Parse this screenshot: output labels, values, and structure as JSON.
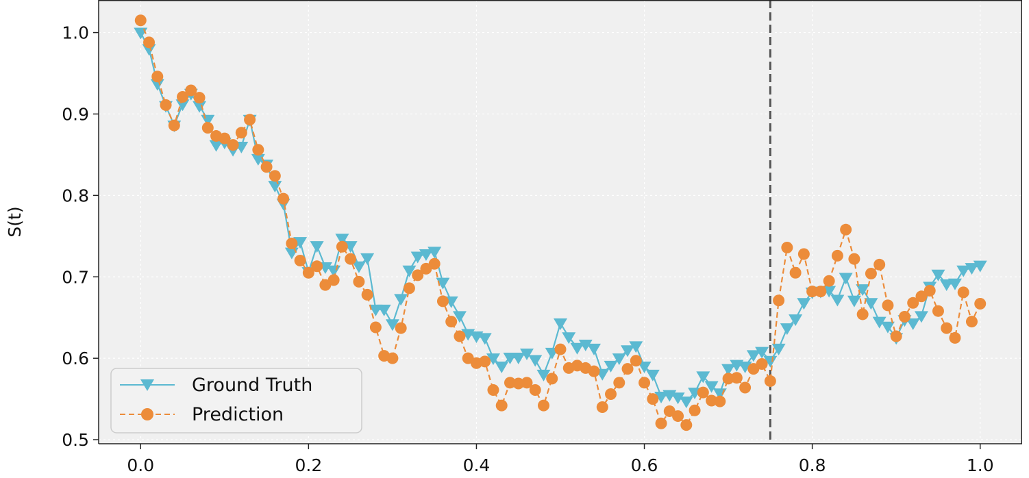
{
  "chart_data": {
    "type": "line",
    "title": "",
    "xlabel": "",
    "ylabel": "S(t)",
    "xlim": [
      -0.05,
      1.05
    ],
    "ylim": [
      0.495,
      1.04
    ],
    "xticks": [
      0.0,
      0.2,
      0.4,
      0.6,
      0.8,
      1.0
    ],
    "xtick_labels": [
      "0.0",
      "0.2",
      "0.4",
      "0.6",
      "0.8",
      "1.0"
    ],
    "yticks": [
      0.5,
      0.6,
      0.7,
      0.8,
      0.9,
      1.0
    ],
    "ytick_labels": [
      "0.5",
      "0.6",
      "0.7",
      "0.8",
      "0.9",
      "1.0"
    ],
    "grid": true,
    "background_color": "#f0f0f0",
    "legend_position": "lower left",
    "vertical_line": {
      "x": 0.75,
      "style": "dashed",
      "color": "#555555"
    },
    "x": [
      0.0,
      0.01,
      0.02,
      0.03,
      0.04,
      0.05,
      0.06,
      0.07,
      0.08,
      0.09,
      0.1,
      0.11,
      0.12,
      0.13,
      0.14,
      0.15,
      0.16,
      0.17,
      0.18,
      0.19,
      0.2,
      0.21,
      0.22,
      0.23,
      0.24,
      0.25,
      0.26,
      0.27,
      0.28,
      0.29,
      0.3,
      0.31,
      0.32,
      0.33,
      0.34,
      0.35,
      0.36,
      0.37,
      0.38,
      0.39,
      0.4,
      0.41,
      0.42,
      0.43,
      0.44,
      0.45,
      0.46,
      0.47,
      0.48,
      0.49,
      0.5,
      0.51,
      0.52,
      0.53,
      0.54,
      0.55,
      0.56,
      0.57,
      0.58,
      0.59,
      0.6,
      0.61,
      0.62,
      0.63,
      0.64,
      0.65,
      0.66,
      0.67,
      0.68,
      0.69,
      0.7,
      0.71,
      0.72,
      0.73,
      0.74,
      0.75,
      0.76,
      0.77,
      0.78,
      0.79,
      0.8,
      0.81,
      0.82,
      0.83,
      0.84,
      0.85,
      0.86,
      0.87,
      0.88,
      0.89,
      0.9,
      0.91,
      0.92,
      0.93,
      0.94,
      0.95,
      0.96,
      0.97,
      0.98,
      0.99,
      1.0
    ],
    "series": [
      {
        "name": "Ground Truth",
        "color": "#5bb9d1",
        "line_style": "solid",
        "marker": "triangle-down",
        "values": [
          1.0,
          0.98,
          0.937,
          0.91,
          0.886,
          0.912,
          0.925,
          0.91,
          0.893,
          0.862,
          0.865,
          0.856,
          0.86,
          0.893,
          0.845,
          0.838,
          0.812,
          0.79,
          0.73,
          0.743,
          0.706,
          0.738,
          0.712,
          0.708,
          0.747,
          0.738,
          0.713,
          0.723,
          0.66,
          0.66,
          0.642,
          0.673,
          0.708,
          0.725,
          0.728,
          0.731,
          0.693,
          0.67,
          0.652,
          0.63,
          0.627,
          0.625,
          0.6,
          0.59,
          0.601,
          0.601,
          0.606,
          0.598,
          0.58,
          0.607,
          0.643,
          0.626,
          0.613,
          0.617,
          0.612,
          0.581,
          0.591,
          0.6,
          0.61,
          0.615,
          0.59,
          0.58,
          0.553,
          0.555,
          0.552,
          0.547,
          0.558,
          0.578,
          0.566,
          0.557,
          0.587,
          0.592,
          0.59,
          0.604,
          0.608,
          0.597,
          0.612,
          0.637,
          0.648,
          0.668,
          0.681,
          0.682,
          0.683,
          0.672,
          0.699,
          0.671,
          0.685,
          0.668,
          0.645,
          0.639,
          0.625,
          0.647,
          0.643,
          0.652,
          0.688,
          0.703,
          0.691,
          0.692,
          0.708,
          0.711,
          0.714
        ]
      },
      {
        "name": "Prediction",
        "color": "#ec8c3a",
        "line_style": "dashed",
        "marker": "circle",
        "values": [
          1.015,
          0.988,
          0.946,
          0.911,
          0.886,
          0.921,
          0.929,
          0.92,
          0.883,
          0.873,
          0.87,
          0.862,
          0.877,
          0.893,
          0.856,
          0.835,
          0.824,
          0.796,
          0.741,
          0.72,
          0.705,
          0.713,
          0.69,
          0.696,
          0.737,
          0.722,
          0.694,
          0.678,
          0.638,
          0.603,
          0.6,
          0.637,
          0.686,
          0.702,
          0.71,
          0.716,
          0.67,
          0.645,
          0.627,
          0.6,
          0.594,
          0.596,
          0.561,
          0.542,
          0.57,
          0.569,
          0.57,
          0.561,
          0.542,
          0.575,
          0.611,
          0.588,
          0.591,
          0.588,
          0.584,
          0.54,
          0.556,
          0.57,
          0.587,
          0.597,
          0.57,
          0.55,
          0.52,
          0.535,
          0.529,
          0.518,
          0.536,
          0.558,
          0.548,
          0.547,
          0.575,
          0.576,
          0.564,
          0.587,
          0.593,
          0.572,
          0.671,
          0.736,
          0.705,
          0.728,
          0.682,
          0.682,
          0.695,
          0.726,
          0.758,
          0.722,
          0.654,
          0.704,
          0.715,
          0.665,
          0.627,
          0.651,
          0.668,
          0.676,
          0.683,
          0.658,
          0.637,
          0.625,
          0.681,
          0.645,
          0.667
        ]
      }
    ]
  }
}
